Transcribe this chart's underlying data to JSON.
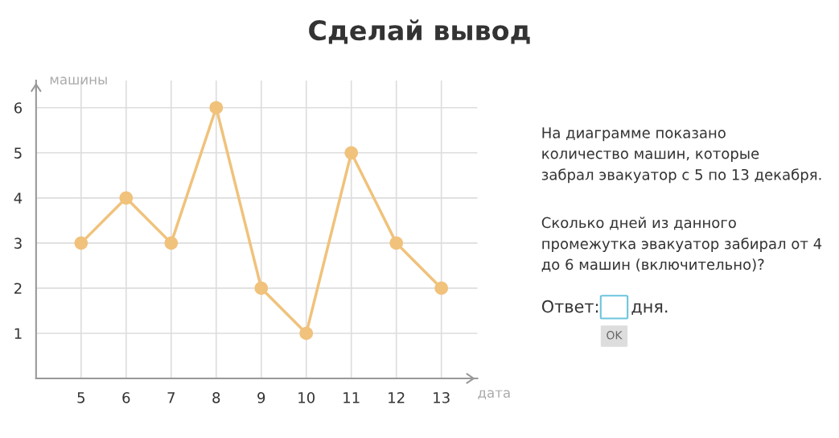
{
  "chart_data": {
    "type": "line",
    "title": "Сделай вывод",
    "xlabel": "дата",
    "ylabel": "машины",
    "categories": [
      "5",
      "6",
      "7",
      "8",
      "9",
      "10",
      "11",
      "12",
      "13"
    ],
    "series": [
      {
        "color": "#f0c27b",
        "values": [
          3,
          4,
          3,
          6,
          2,
          1,
          5,
          3,
          2
        ]
      }
    ],
    "ylim": [
      0,
      6.6
    ],
    "yticks": [
      1,
      2,
      3,
      4,
      5,
      6
    ],
    "grid": true,
    "marker": "circle",
    "line_style": "solid",
    "annotations": [
      "На диаграмме показано\nколичество машин, которые\nзабрал эвакуатор с 5 по 13 декабря.",
      "Сколько дней из данного\nпромежутка эвакуатор забирал от 4\nдо 6 машин (включительно)?",
      "Ответ:",
      "дня.",
      "OK"
    ]
  }
}
